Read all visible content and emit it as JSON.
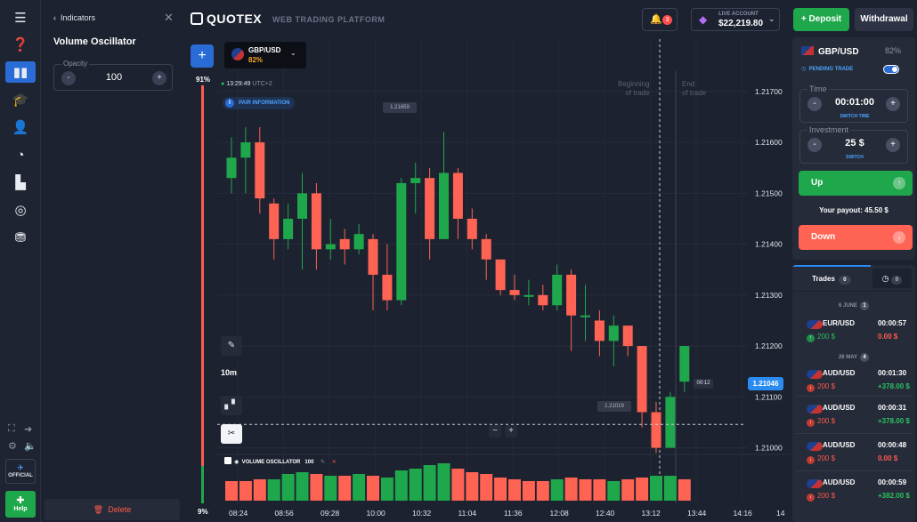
{
  "indicators": {
    "back_label": "Indicators",
    "title": "Volume Oscillator",
    "opacity_label": "Opacity",
    "opacity_value": "100",
    "delete_label": "Delete"
  },
  "rail": {
    "official_label": "OFFICIAL",
    "help_label": "Help"
  },
  "header": {
    "brand": "QUOTEX",
    "subtitle": "WEB TRADING PLATFORM",
    "notifications_count": "3",
    "account_type": "LIVE ACCOUNT",
    "balance": "$22,219.80",
    "deposit_label": "Deposit",
    "withdrawal_label": "Withdrawal"
  },
  "chart": {
    "asset": "GBP/USD",
    "asset_payout": "82%",
    "pct_top": "91%",
    "pct_bottom": "9%",
    "time": "13:29:49",
    "timezone": "UTC+2",
    "pair_info_label": "PAIR INFORMATION",
    "timeframe": "10m",
    "beginning_label_1": "Beginning",
    "beginning_label_2": "of trade",
    "end_label_1": "End",
    "end_label_2": "of trade",
    "current_price": "1.21046",
    "timer": "00:12",
    "high_tag": "1.21659",
    "low_tag": "1.21019",
    "volume_label": "VOLUME OSCILLATOR",
    "volume_value": "100",
    "zoom_minus": "−",
    "zoom_plus": "+"
  },
  "chart_data": {
    "type": "candlestick",
    "price_ticks": [
      "1.21700",
      "1.21600",
      "1.21500",
      "1.21400",
      "1.21300",
      "1.21200",
      "1.21100",
      "1.21000"
    ],
    "price_tick_values": [
      1.217,
      1.216,
      1.215,
      1.214,
      1.213,
      1.212,
      1.211,
      1.21
    ],
    "time_ticks": [
      "08:24",
      "08:56",
      "09:28",
      "10:00",
      "10:32",
      "11:04",
      "11:36",
      "12:08",
      "12:40",
      "13:12",
      "13:44",
      "14:16",
      "14"
    ],
    "candles": [
      {
        "o": 1.2153,
        "c": 1.2157,
        "h": 1.2161,
        "l": 1.215
      },
      {
        "o": 1.2157,
        "c": 1.216,
        "h": 1.2163,
        "l": 1.215
      },
      {
        "o": 1.216,
        "c": 1.2149,
        "h": 1.2163,
        "l": 1.2146
      },
      {
        "o": 1.2148,
        "c": 1.2141,
        "h": 1.2149,
        "l": 1.2137
      },
      {
        "o": 1.2141,
        "c": 1.2145,
        "h": 1.2148,
        "l": 1.2139
      },
      {
        "o": 1.2145,
        "c": 1.215,
        "h": 1.2154,
        "l": 1.2135
      },
      {
        "o": 1.215,
        "c": 1.2139,
        "h": 1.2152,
        "l": 1.2135
      },
      {
        "o": 1.2139,
        "c": 1.214,
        "h": 1.2145,
        "l": 1.2137
      },
      {
        "o": 1.2141,
        "c": 1.2139,
        "h": 1.2143,
        "l": 1.2136
      },
      {
        "o": 1.2139,
        "c": 1.2142,
        "h": 1.2144,
        "l": 1.2138
      },
      {
        "o": 1.2141,
        "c": 1.2134,
        "h": 1.2142,
        "l": 1.2127
      },
      {
        "o": 1.2134,
        "c": 1.2129,
        "h": 1.214,
        "l": 1.2127
      },
      {
        "o": 1.2129,
        "c": 1.2152,
        "h": 1.2153,
        "l": 1.2128
      },
      {
        "o": 1.2152,
        "c": 1.2153,
        "h": 1.2156,
        "l": 1.2146
      },
      {
        "o": 1.2153,
        "c": 1.2141,
        "h": 1.2155,
        "l": 1.2137
      },
      {
        "o": 1.2141,
        "c": 1.2154,
        "h": 1.2162,
        "l": 1.2141
      },
      {
        "o": 1.2154,
        "c": 1.2145,
        "h": 1.2155,
        "l": 1.2141
      },
      {
        "o": 1.2145,
        "c": 1.2141,
        "h": 1.2147,
        "l": 1.2139
      },
      {
        "o": 1.2141,
        "c": 1.2137,
        "h": 1.2142,
        "l": 1.2133
      },
      {
        "o": 1.2137,
        "c": 1.2131,
        "h": 1.2137,
        "l": 1.213
      },
      {
        "o": 1.2131,
        "c": 1.213,
        "h": 1.2134,
        "l": 1.2129
      },
      {
        "o": 1.213,
        "c": 1.213,
        "h": 1.2133,
        "l": 1.2128
      },
      {
        "o": 1.213,
        "c": 1.2128,
        "h": 1.2132,
        "l": 1.2127
      },
      {
        "o": 1.2128,
        "c": 1.2134,
        "h": 1.2136,
        "l": 1.2127
      },
      {
        "o": 1.2134,
        "c": 1.2126,
        "h": 1.2135,
        "l": 1.2119
      },
      {
        "o": 1.2126,
        "c": 1.2126,
        "h": 1.2132,
        "l": 1.2121
      },
      {
        "o": 1.2125,
        "c": 1.2121,
        "h": 1.2127,
        "l": 1.2118
      },
      {
        "o": 1.2121,
        "c": 1.2124,
        "h": 1.2126,
        "l": 1.2116
      },
      {
        "o": 1.2124,
        "c": 1.212,
        "h": 1.2124,
        "l": 1.2118
      },
      {
        "o": 1.212,
        "c": 1.2107,
        "h": 1.212,
        "l": 1.2104
      },
      {
        "o": 1.2107,
        "c": 1.21,
        "h": 1.2109,
        "l": 1.2099
      },
      {
        "o": 1.21,
        "c": 1.211,
        "h": 1.2111,
        "l": 1.21
      },
      {
        "o": 1.2113,
        "c": 1.212,
        "h": 1.212,
        "l": 1.2111
      }
    ],
    "volume": [
      {
        "v": 22,
        "up": false
      },
      {
        "v": 22,
        "up": false
      },
      {
        "v": 24,
        "up": false
      },
      {
        "v": 24,
        "up": true
      },
      {
        "v": 30,
        "up": true
      },
      {
        "v": 32,
        "up": true
      },
      {
        "v": 30,
        "up": false
      },
      {
        "v": 28,
        "up": true
      },
      {
        "v": 28,
        "up": false
      },
      {
        "v": 30,
        "up": true
      },
      {
        "v": 28,
        "up": false
      },
      {
        "v": 26,
        "up": true
      },
      {
        "v": 34,
        "up": true
      },
      {
        "v": 36,
        "up": true
      },
      {
        "v": 40,
        "up": true
      },
      {
        "v": 42,
        "up": true
      },
      {
        "v": 36,
        "up": false
      },
      {
        "v": 32,
        "up": false
      },
      {
        "v": 30,
        "up": false
      },
      {
        "v": 26,
        "up": false
      },
      {
        "v": 24,
        "up": false
      },
      {
        "v": 22,
        "up": false
      },
      {
        "v": 22,
        "up": false
      },
      {
        "v": 24,
        "up": true
      },
      {
        "v": 26,
        "up": false
      },
      {
        "v": 24,
        "up": false
      },
      {
        "v": 24,
        "up": false
      },
      {
        "v": 22,
        "up": true
      },
      {
        "v": 24,
        "up": false
      },
      {
        "v": 26,
        "up": false
      },
      {
        "v": 28,
        "up": true
      },
      {
        "v": 28,
        "up": true
      },
      {
        "v": 24,
        "up": false
      }
    ],
    "current_price": 1.21046,
    "y_range": [
      1.2098,
      1.2174
    ]
  },
  "trade_panel": {
    "asset": "GBP/USD",
    "payout_pct": "82%",
    "pending_label": "PENDING TRADE",
    "time_label": "Time",
    "time_value": "00:01:00",
    "switch_time": "SWITCH TIME",
    "investment_label": "Investment",
    "investment_value": "25 $",
    "switch_label": "SWITCH",
    "up_label": "Up",
    "down_label": "Down",
    "payout_text": "Your payout:",
    "payout_value": "45.50 $"
  },
  "trades": {
    "tab_label": "Trades",
    "tab_count": "0",
    "history_count": "0",
    "groups": [
      {
        "date": "6 JUNE",
        "count": "1"
      },
      {
        "date": "26 MAY",
        "count": "4"
      }
    ],
    "rows": [
      {
        "pair": "EUR/USD",
        "time": "00:00:57",
        "amount": "200 $",
        "result": "0.00 $",
        "won": true,
        "pos": "up"
      },
      {
        "pair": "AUD/USD",
        "time": "00:01:30",
        "amount": "200 $",
        "result": "+378.00 $",
        "won": true,
        "pos": "down"
      },
      {
        "pair": "AUD/USD",
        "time": "00:00:31",
        "amount": "200 $",
        "result": "+378.00 $",
        "won": true,
        "pos": "down"
      },
      {
        "pair": "AUD/USD",
        "time": "00:00:48",
        "amount": "200 $",
        "result": "0.00 $",
        "won": false,
        "pos": "down"
      },
      {
        "pair": "AUD/USD",
        "time": "00:00:59",
        "amount": "200 $",
        "result": "+382.00 $",
        "won": true,
        "pos": "down"
      }
    ]
  }
}
